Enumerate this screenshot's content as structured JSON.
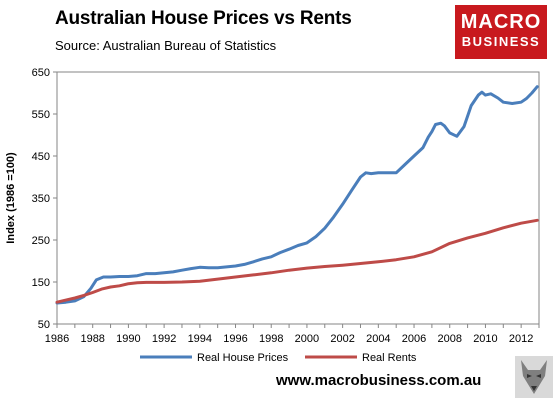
{
  "header": {
    "title": "Australian House Prices vs Rents",
    "subtitle": "Source: Australian Bureau of Statistics"
  },
  "logo": {
    "line1": "MACRO",
    "line2": "BUSINESS"
  },
  "footer": {
    "url": "www.macrobusiness.com.au"
  },
  "colors": {
    "house": "#4a7ebb",
    "rents": "#be4b48",
    "logo_bg": "#c8191e",
    "plot_border": "#868686"
  },
  "chart_data": {
    "type": "line",
    "title": "Australian House Prices vs Rents",
    "ylabel": "Index (1986 =100)",
    "xlabel": "",
    "xlim": [
      1986,
      2013
    ],
    "ylim": [
      50,
      650
    ],
    "xticks": [
      1986,
      1988,
      1990,
      1992,
      1994,
      1996,
      1998,
      2000,
      2002,
      2004,
      2006,
      2008,
      2010,
      2012
    ],
    "yticks": [
      50,
      150,
      250,
      350,
      450,
      550,
      650
    ],
    "grid": false,
    "legend_position": "bottom",
    "series": [
      {
        "name": "Real House Prices",
        "color": "#4a7ebb",
        "points": [
          [
            1986.0,
            100
          ],
          [
            1986.5,
            102
          ],
          [
            1987.0,
            105
          ],
          [
            1987.5,
            115
          ],
          [
            1987.9,
            135
          ],
          [
            1988.2,
            155
          ],
          [
            1988.6,
            162
          ],
          [
            1989.0,
            162
          ],
          [
            1989.5,
            163
          ],
          [
            1990.0,
            163
          ],
          [
            1990.5,
            165
          ],
          [
            1991.0,
            170
          ],
          [
            1991.5,
            170
          ],
          [
            1992.0,
            172
          ],
          [
            1992.5,
            174
          ],
          [
            1993.0,
            178
          ],
          [
            1993.5,
            182
          ],
          [
            1994.0,
            185
          ],
          [
            1994.5,
            184
          ],
          [
            1995.0,
            184
          ],
          [
            1995.5,
            186
          ],
          [
            1996.0,
            188
          ],
          [
            1996.5,
            192
          ],
          [
            1997.0,
            198
          ],
          [
            1997.5,
            205
          ],
          [
            1998.0,
            210
          ],
          [
            1998.5,
            220
          ],
          [
            1999.0,
            228
          ],
          [
            1999.5,
            237
          ],
          [
            2000.0,
            243
          ],
          [
            2000.5,
            258
          ],
          [
            2001.0,
            278
          ],
          [
            2001.5,
            305
          ],
          [
            2002.0,
            335
          ],
          [
            2002.5,
            368
          ],
          [
            2003.0,
            400
          ],
          [
            2003.3,
            410
          ],
          [
            2003.6,
            408
          ],
          [
            2004.0,
            410
          ],
          [
            2004.5,
            410
          ],
          [
            2005.0,
            410
          ],
          [
            2005.5,
            430
          ],
          [
            2006.0,
            450
          ],
          [
            2006.5,
            470
          ],
          [
            2006.8,
            495
          ],
          [
            2007.0,
            508
          ],
          [
            2007.2,
            525
          ],
          [
            2007.5,
            528
          ],
          [
            2007.7,
            522
          ],
          [
            2008.0,
            505
          ],
          [
            2008.4,
            497
          ],
          [
            2008.8,
            520
          ],
          [
            2009.2,
            570
          ],
          [
            2009.6,
            595
          ],
          [
            2009.8,
            602
          ],
          [
            2010.0,
            595
          ],
          [
            2010.3,
            598
          ],
          [
            2010.7,
            588
          ],
          [
            2011.0,
            578
          ],
          [
            2011.5,
            575
          ],
          [
            2012.0,
            578
          ],
          [
            2012.3,
            587
          ],
          [
            2012.6,
            600
          ],
          [
            2012.9,
            615
          ]
        ]
      },
      {
        "name": "Real Rents",
        "color": "#be4b48",
        "points": [
          [
            1986.0,
            102
          ],
          [
            1986.5,
            107
          ],
          [
            1987.0,
            112
          ],
          [
            1987.5,
            118
          ],
          [
            1988.0,
            125
          ],
          [
            1988.5,
            133
          ],
          [
            1989.0,
            138
          ],
          [
            1989.5,
            141
          ],
          [
            1990.0,
            146
          ],
          [
            1990.5,
            148
          ],
          [
            1991.0,
            149
          ],
          [
            1992.0,
            149
          ],
          [
            1993.0,
            150
          ],
          [
            1994.0,
            152
          ],
          [
            1995.0,
            157
          ],
          [
            1996.0,
            162
          ],
          [
            1997.0,
            167
          ],
          [
            1998.0,
            172
          ],
          [
            1999.0,
            178
          ],
          [
            2000.0,
            183
          ],
          [
            2001.0,
            187
          ],
          [
            2002.0,
            190
          ],
          [
            2003.0,
            194
          ],
          [
            2004.0,
            198
          ],
          [
            2005.0,
            203
          ],
          [
            2006.0,
            210
          ],
          [
            2007.0,
            222
          ],
          [
            2008.0,
            242
          ],
          [
            2009.0,
            255
          ],
          [
            2010.0,
            266
          ],
          [
            2011.0,
            279
          ],
          [
            2012.0,
            290
          ],
          [
            2012.9,
            297
          ]
        ]
      }
    ]
  }
}
